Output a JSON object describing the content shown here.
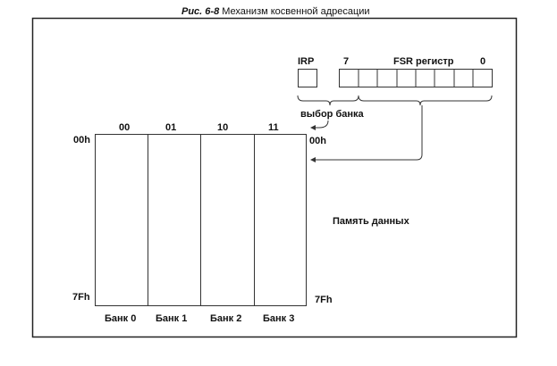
{
  "caption": {
    "fig": "Рис. 6-8",
    "title": "Механизм косвенной адресации"
  },
  "register": {
    "irp_label": "IRP",
    "fsr_label": "FSR регистр",
    "bit_high": "7",
    "bit_low": "0",
    "bank_select_label": "выбор банка"
  },
  "memory": {
    "columns": [
      "00",
      "01",
      "10",
      "11"
    ],
    "banks": [
      "Банк 0",
      "Банк 1",
      "Банк 2",
      "Банк 3"
    ],
    "addr_start": "00h",
    "addr_end": "7Fh",
    "label": "Память данных"
  }
}
